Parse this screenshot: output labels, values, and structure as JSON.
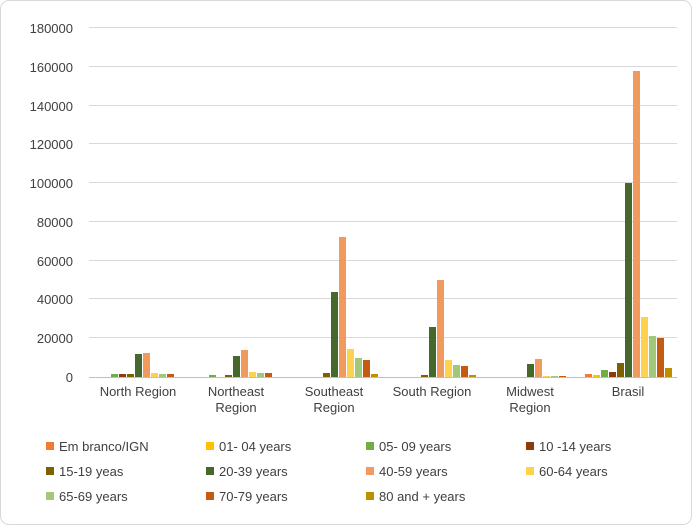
{
  "chart_data": {
    "type": "bar",
    "title": "",
    "xlabel": "",
    "ylabel": "",
    "ylim": [
      0,
      180000
    ],
    "ytick_step": 20000,
    "grid": "horizontal",
    "legend_position": "bottom",
    "categories": [
      "North Region",
      "Northeast Region",
      "Southeast Region",
      "South Region",
      "Midwest Region",
      "Brasil"
    ],
    "series": [
      {
        "name": "Em branco/IGN",
        "color": "#ED7D31",
        "values": [
          0,
          0,
          0,
          0,
          0,
          1800
        ]
      },
      {
        "name": "01- 04 years",
        "color": "#FFC000",
        "values": [
          0,
          0,
          0,
          0,
          0,
          1250
        ]
      },
      {
        "name": "05- 09 years",
        "color": "#70AD47",
        "values": [
          1500,
          1000,
          0,
          0,
          0,
          3500
        ]
      },
      {
        "name": "10 -14 years",
        "color": "#8B3C0A",
        "values": [
          1500,
          0,
          0,
          0,
          0,
          2600
        ]
      },
      {
        "name": "15-19 yeas",
        "color": "#7F6000",
        "values": [
          1600,
          1100,
          2000,
          1250,
          0,
          7000
        ]
      },
      {
        "name": "20-39 years",
        "color": "#46682B",
        "values": [
          12000,
          11000,
          44000,
          26000,
          6500,
          100000
        ]
      },
      {
        "name": "40-59 years",
        "color": "#F09A5D",
        "values": [
          12500,
          14000,
          72000,
          50000,
          9200,
          158000
        ]
      },
      {
        "name": "60-64 years",
        "color": "#FFD24D",
        "values": [
          2000,
          2400,
          14500,
          9000,
          700,
          31000
        ]
      },
      {
        "name": "65-69 years",
        "color": "#A0C878",
        "values": [
          1800,
          2000,
          10000,
          6000,
          500,
          21000
        ]
      },
      {
        "name": "70-79 years",
        "color": "#C55A11",
        "values": [
          1800,
          2000,
          9000,
          5800,
          500,
          20000
        ]
      },
      {
        "name": "80 and + years",
        "color": "#BF8F00",
        "values": [
          0,
          0,
          1800,
          900,
          0,
          4500
        ]
      }
    ]
  },
  "style": {
    "background": "#FFFFFF",
    "frame_border": "#D9D9D9",
    "gridline_color": "#D9D9D9",
    "axis_line_color": "#BFBFBF",
    "text_color": "#404040"
  }
}
